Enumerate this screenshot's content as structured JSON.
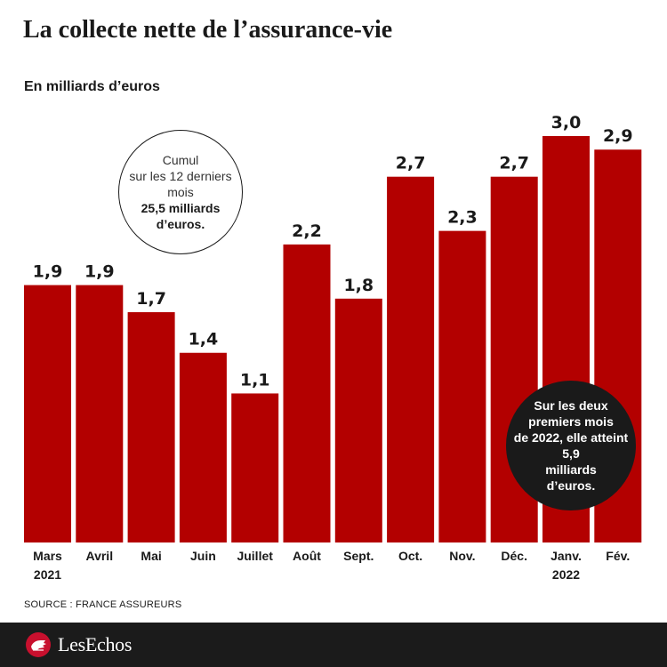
{
  "header": {
    "title": "La collecte nette de l’assurance-vie",
    "subtitle": "En milliards d’euros"
  },
  "chart_data": {
    "type": "bar",
    "title": "La collecte nette de l’assurance-vie",
    "ylabel": "En milliards d’euros",
    "categories": [
      "Mars",
      "Avril",
      "Mai",
      "Juin",
      "Juillet",
      "Août",
      "Sept.",
      "Oct.",
      "Nov.",
      "Déc.",
      "Janv.",
      "Fév."
    ],
    "year_labels": [
      "2021",
      "",
      "",
      "",
      "",
      "",
      "",
      "",
      "",
      "",
      "2022",
      ""
    ],
    "values": [
      1.9,
      1.9,
      1.7,
      1.4,
      1.1,
      2.2,
      1.8,
      2.7,
      2.3,
      2.7,
      3.0,
      2.9
    ],
    "value_labels": [
      "1,9",
      "1,9",
      "1,7",
      "1,4",
      "1,1",
      "2,2",
      "1,8",
      "2,7",
      "2,3",
      "2,7",
      "3,0",
      "2,9"
    ],
    "ylim": [
      0,
      3.0
    ],
    "grid": false,
    "bar_color": "#b30000"
  },
  "annotations": {
    "cumul": {
      "lines": [
        "Cumul",
        "sur les 12 derniers",
        "mois"
      ],
      "bold_lines": [
        "25,5 milliards",
        "d’euros."
      ]
    },
    "year2022": {
      "lines": [
        "Sur les deux",
        "premiers mois",
        "de 2022, elle atteint",
        "5,9",
        "milliards",
        "d’euros."
      ]
    }
  },
  "source": "SOURCE : FRANCE ASSUREURS",
  "footer": {
    "logo_text": "LesEchos",
    "logo_icon": "les-echos-hand-icon"
  },
  "colors": {
    "bar": "#b30000",
    "footer_bg": "#1b1b1b",
    "text": "#1a1a1a"
  }
}
